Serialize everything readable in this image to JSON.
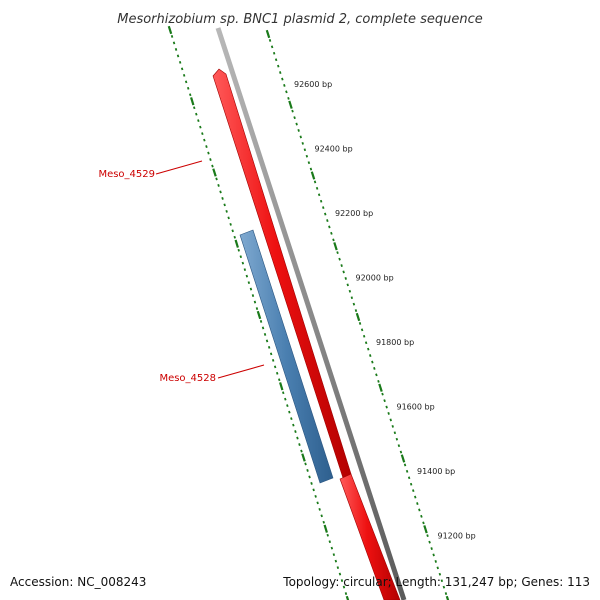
{
  "title": "Mesorhizobium sp. BNC1 plasmid 2, complete sequence",
  "footer": {
    "accession": "Accession: NC_008243",
    "summary": "Topology: circular; Length: 131,247 bp; Genes: 113"
  },
  "colors": {
    "backbone": "#8a8a8a",
    "forward_gene": "#ee1111",
    "reverse_gene": "#4a7fb0",
    "ticks": "#1a7a1a",
    "label_text": "#cc0000"
  },
  "ticks": [
    {
      "label": "92600 bp",
      "position": 92600
    },
    {
      "label": "92400 bp",
      "position": 92400
    },
    {
      "label": "92200 bp",
      "position": 92200
    },
    {
      "label": "92000 bp",
      "position": 92000
    },
    {
      "label": "91800 bp",
      "position": 91800
    },
    {
      "label": "91600 bp",
      "position": 91600
    },
    {
      "label": "91400 bp",
      "position": 91400
    },
    {
      "label": "91200 bp",
      "position": 91200
    }
  ],
  "genes": [
    {
      "name": "Meso_4529",
      "strand": "forward"
    },
    {
      "name": "Meso_4528",
      "strand": "reverse"
    }
  ]
}
